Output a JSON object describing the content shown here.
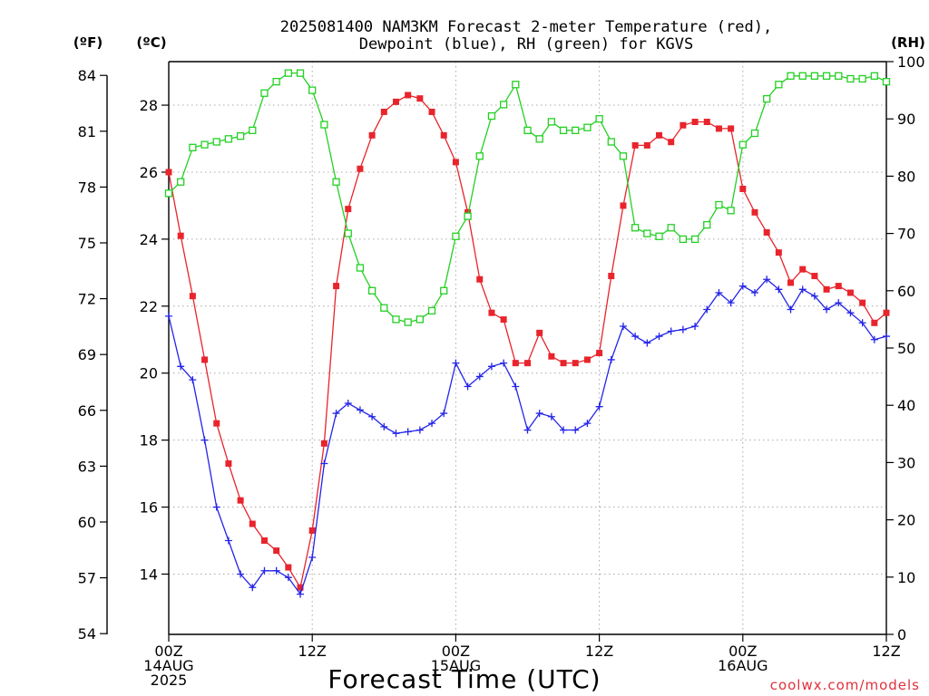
{
  "chart_data": {
    "type": "line",
    "title_line1": "2025081400 NAM3KM Forecast 2-meter Temperature (red),",
    "title_line2": "Dewpoint (blue), RH (green) for KGVS",
    "xlabel": "Forecast Time (UTC)",
    "credit": "coolwx.com/models",
    "unit_f": "(ºF)",
    "unit_c": "(ºC)",
    "unit_rh": "(RH)",
    "x_range_hours": [
      0,
      60
    ],
    "x_ticks": [
      {
        "hour": 0,
        "lines": [
          "00Z",
          "14AUG",
          "2025"
        ]
      },
      {
        "hour": 12,
        "lines": [
          "12Z"
        ]
      },
      {
        "hour": 24,
        "lines": [
          "00Z",
          "15AUG"
        ]
      },
      {
        "hour": 36,
        "lines": [
          "12Z"
        ]
      },
      {
        "hour": 48,
        "lines": [
          "00Z",
          "16AUG"
        ]
      },
      {
        "hour": 60,
        "lines": [
          "12Z"
        ]
      }
    ],
    "celsius_range": [
      12.2,
      29.3
    ],
    "celsius_ticks": [
      "14",
      "16",
      "18",
      "20",
      "22",
      "24",
      "26",
      "28"
    ],
    "fahrenheit_ticks": [
      "54",
      "57",
      "60",
      "63",
      "66",
      "69",
      "72",
      "75",
      "78",
      "81",
      "84"
    ],
    "rh_range": [
      0,
      100
    ],
    "rh_ticks": [
      "0",
      "10",
      "20",
      "30",
      "40",
      "50",
      "60",
      "70",
      "80",
      "90",
      "100"
    ],
    "grid": true,
    "series": [
      {
        "name": "Temperature",
        "unit": "°C",
        "color": "#e8242c",
        "marker": "filled-square",
        "axis": "celsius",
        "values": [
          26.0,
          24.1,
          22.3,
          20.4,
          18.5,
          17.3,
          16.2,
          15.5,
          15.0,
          14.7,
          14.2,
          13.6,
          15.3,
          17.9,
          22.6,
          24.9,
          26.1,
          27.1,
          27.8,
          28.1,
          28.3,
          28.2,
          27.8,
          27.1,
          26.3,
          24.8,
          22.8,
          21.8,
          21.6,
          20.3,
          20.3,
          21.2,
          20.5,
          20.3,
          20.3,
          20.4,
          20.6,
          22.9,
          25.0,
          26.8,
          26.8,
          27.1,
          26.9,
          27.4,
          27.5,
          27.5,
          27.3,
          27.3,
          25.5,
          24.8,
          24.2,
          23.6,
          22.7,
          23.1,
          22.9,
          22.5,
          22.6,
          22.4,
          22.1,
          21.5,
          21.8
        ]
      },
      {
        "name": "Dewpoint",
        "unit": "°C",
        "color": "#2424e8",
        "marker": "plus",
        "axis": "celsius",
        "values": [
          21.7,
          20.2,
          19.8,
          18.0,
          16.0,
          15.0,
          14.0,
          13.6,
          14.1,
          14.1,
          13.9,
          13.4,
          14.5,
          17.3,
          18.8,
          19.1,
          18.9,
          18.7,
          18.4,
          18.2,
          18.25,
          18.3,
          18.5,
          18.8,
          20.3,
          19.6,
          19.9,
          20.2,
          20.3,
          19.6,
          18.3,
          18.8,
          18.7,
          18.3,
          18.3,
          18.5,
          19.0,
          20.4,
          21.4,
          21.1,
          20.9,
          21.1,
          21.25,
          21.3,
          21.4,
          21.9,
          22.4,
          22.1,
          22.6,
          22.4,
          22.8,
          22.5,
          21.9,
          22.5,
          22.3,
          21.9,
          22.1,
          21.8,
          21.5,
          21.0,
          21.1
        ]
      },
      {
        "name": "RH",
        "unit": "%",
        "color": "#24d024",
        "marker": "open-square",
        "axis": "rh",
        "values": [
          77,
          79,
          85,
          85.5,
          86,
          86.5,
          87,
          88,
          94.5,
          96.5,
          98,
          98,
          95,
          89,
          79,
          70,
          64,
          60,
          57,
          55,
          54.5,
          55,
          56.5,
          60,
          69.5,
          73,
          83.5,
          90.5,
          92.5,
          96,
          88,
          86.5,
          89.5,
          88,
          88,
          88.5,
          90,
          86,
          83.5,
          71,
          70,
          69.5,
          71,
          69,
          69,
          71.5,
          75,
          74,
          85.5,
          87.5,
          93.5,
          96,
          97.5,
          97.5,
          97.5,
          97.5,
          97.5,
          97,
          97,
          97.5,
          96.5
        ]
      }
    ]
  }
}
